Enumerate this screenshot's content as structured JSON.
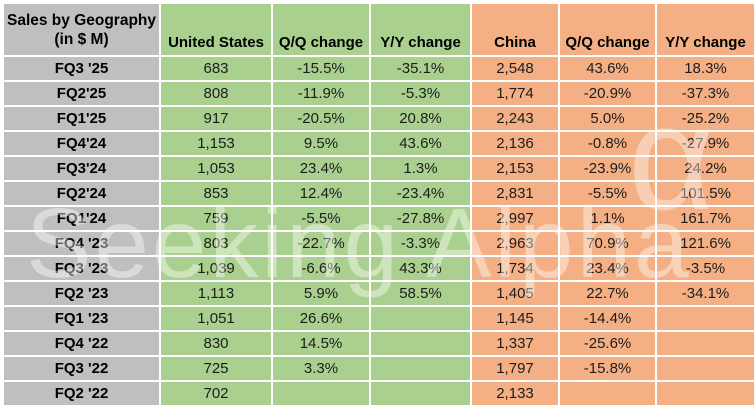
{
  "watermark": {
    "text": "Seeking Alpha",
    "alpha_glyph": "α"
  },
  "colors": {
    "us_fill": "#a9d08e",
    "china_fill": "#f4b084",
    "label_fill": "#bfbfbf",
    "grid": "#ffffff",
    "header_text": "#000000",
    "data_text": "#1c1c1c"
  },
  "chart_data": {
    "type": "table",
    "title": "Sales by Geography (in $ M)",
    "title_lines": [
      "Sales by Geography",
      "(in $ M)"
    ],
    "column_headers": [
      "United States",
      "Q/Q change",
      "Y/Y change",
      "China",
      "Q/Q change",
      "Y/Y change"
    ],
    "column_keys": [
      "us-sales",
      "us-qq-change",
      "us-yy-change",
      "china-sales",
      "china-qq-change",
      "china-yy-change"
    ],
    "row_labels": [
      "FQ3 '25",
      "FQ2'25",
      "FQ1'25",
      "FQ4'24",
      "FQ3'24",
      "FQ2'24",
      "FQ1'24",
      "FQ4 '23",
      "FQ3 '23",
      "FQ2 '23",
      "FQ1 '23",
      "FQ4 '22",
      "FQ3 '22",
      "FQ2 '22"
    ],
    "rows": [
      [
        "683",
        "-15.5%",
        "-35.1%",
        "2,548",
        "43.6%",
        "18.3%"
      ],
      [
        "808",
        "-11.9%",
        "-5.3%",
        "1,774",
        "-20.9%",
        "-37.3%"
      ],
      [
        "917",
        "-20.5%",
        "20.8%",
        "2,243",
        "5.0%",
        "-25.2%"
      ],
      [
        "1,153",
        "9.5%",
        "43.6%",
        "2,136",
        "-0.8%",
        "-27.9%"
      ],
      [
        "1,053",
        "23.4%",
        "1.3%",
        "2,153",
        "-23.9%",
        "24.2%"
      ],
      [
        "853",
        "12.4%",
        "-23.4%",
        "2,831",
        "-5.5%",
        "101.5%"
      ],
      [
        "759",
        "-5.5%",
        "-27.8%",
        "2,997",
        "1.1%",
        "161.7%"
      ],
      [
        "803",
        "-22.7%",
        "-3.3%",
        "2,963",
        "70.9%",
        "121.6%"
      ],
      [
        "1,039",
        "-6.6%",
        "43.3%",
        "1,734",
        "23.4%",
        "-3.5%"
      ],
      [
        "1,113",
        "5.9%",
        "58.5%",
        "1,405",
        "22.7%",
        "-34.1%"
      ],
      [
        "1,051",
        "26.6%",
        "",
        "1,145",
        "-14.4%",
        ""
      ],
      [
        "830",
        "14.5%",
        "",
        "1,337",
        "-25.6%",
        ""
      ],
      [
        "725",
        "3.3%",
        "",
        "1,797",
        "-15.8%",
        ""
      ],
      [
        "702",
        "",
        "",
        "2,133",
        "",
        ""
      ]
    ],
    "series": [
      {
        "name": "United States sales ($M)",
        "values": [
          683,
          808,
          917,
          1153,
          1053,
          853,
          759,
          803,
          1039,
          1113,
          1051,
          830,
          725,
          702
        ]
      },
      {
        "name": "China sales ($M)",
        "values": [
          2548,
          1774,
          2243,
          2136,
          2153,
          2831,
          2997,
          2963,
          1734,
          1405,
          1145,
          1337,
          1797,
          2133
        ]
      }
    ]
  }
}
